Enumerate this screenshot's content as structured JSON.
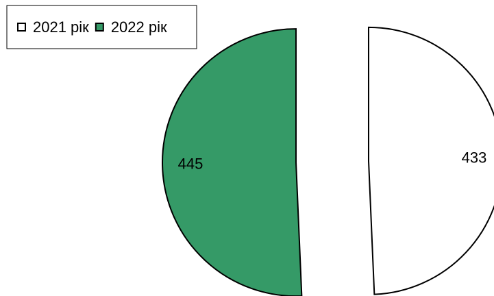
{
  "chart_data": {
    "type": "pie",
    "categories": [
      "2021 рік",
      "2022 рік"
    ],
    "values": [
      433,
      445
    ],
    "colors": [
      "#ffffff",
      "#359a67"
    ]
  }
}
